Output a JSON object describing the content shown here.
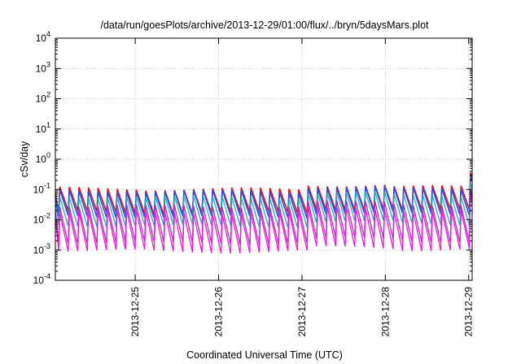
{
  "chart_data": {
    "type": "line",
    "title": "/data/run/goesPlots/archive/2013-12-29/01:00/flux/../bryn/5daysMars.plot",
    "xlabel": "Coordinated Universal Time (UTC)",
    "ylabel": "cSv/day",
    "xlim": [
      "2013-12-24T01:00",
      "2013-12-29T01:00"
    ],
    "ylim": [
      0.0001,
      10000
    ],
    "yscale": "log",
    "x_ticks": [
      "2013-12-25",
      "2013-12-26",
      "2013-12-27",
      "2013-12-28",
      "2013-12-29"
    ],
    "y_ticks": [
      {
        "base": "10",
        "exp": "-4"
      },
      {
        "base": "10",
        "exp": "-3"
      },
      {
        "base": "10",
        "exp": "-2"
      },
      {
        "base": "10",
        "exp": "-1"
      },
      {
        "base": "10",
        "exp": "0"
      },
      {
        "base": "10",
        "exp": "1"
      },
      {
        "base": "10",
        "exp": "2"
      },
      {
        "base": "10",
        "exp": "3"
      },
      {
        "base": "10",
        "exp": "4"
      }
    ],
    "grid": true,
    "pattern": {
      "kind": "sawtooth",
      "period_hours": 2.75,
      "peaks_by_day": {
        "2013-12-24": 0.085,
        "2013-12-25": 0.08,
        "2013-12-26": 0.08,
        "2013-12-27": 0.11,
        "2013-12-28": 0.095
      },
      "final_spike_peak": 0.45
    },
    "series": [
      {
        "color": "#e8101a",
        "peak_factor": 1.3,
        "trough_ratio": 0.16
      },
      {
        "color": "#2a4fe0",
        "peak_factor": 1.1,
        "trough_ratio": 0.14
      },
      {
        "color": "#20b0c8",
        "peak_factor": 0.7,
        "trough_ratio": 0.11
      },
      {
        "color": "#b030c0",
        "peak_factor": 0.35,
        "trough_ratio": 0.06
      },
      {
        "color": "#ff10e0",
        "peak_factor": 0.22,
        "trough_ratio": 0.05
      }
    ]
  }
}
